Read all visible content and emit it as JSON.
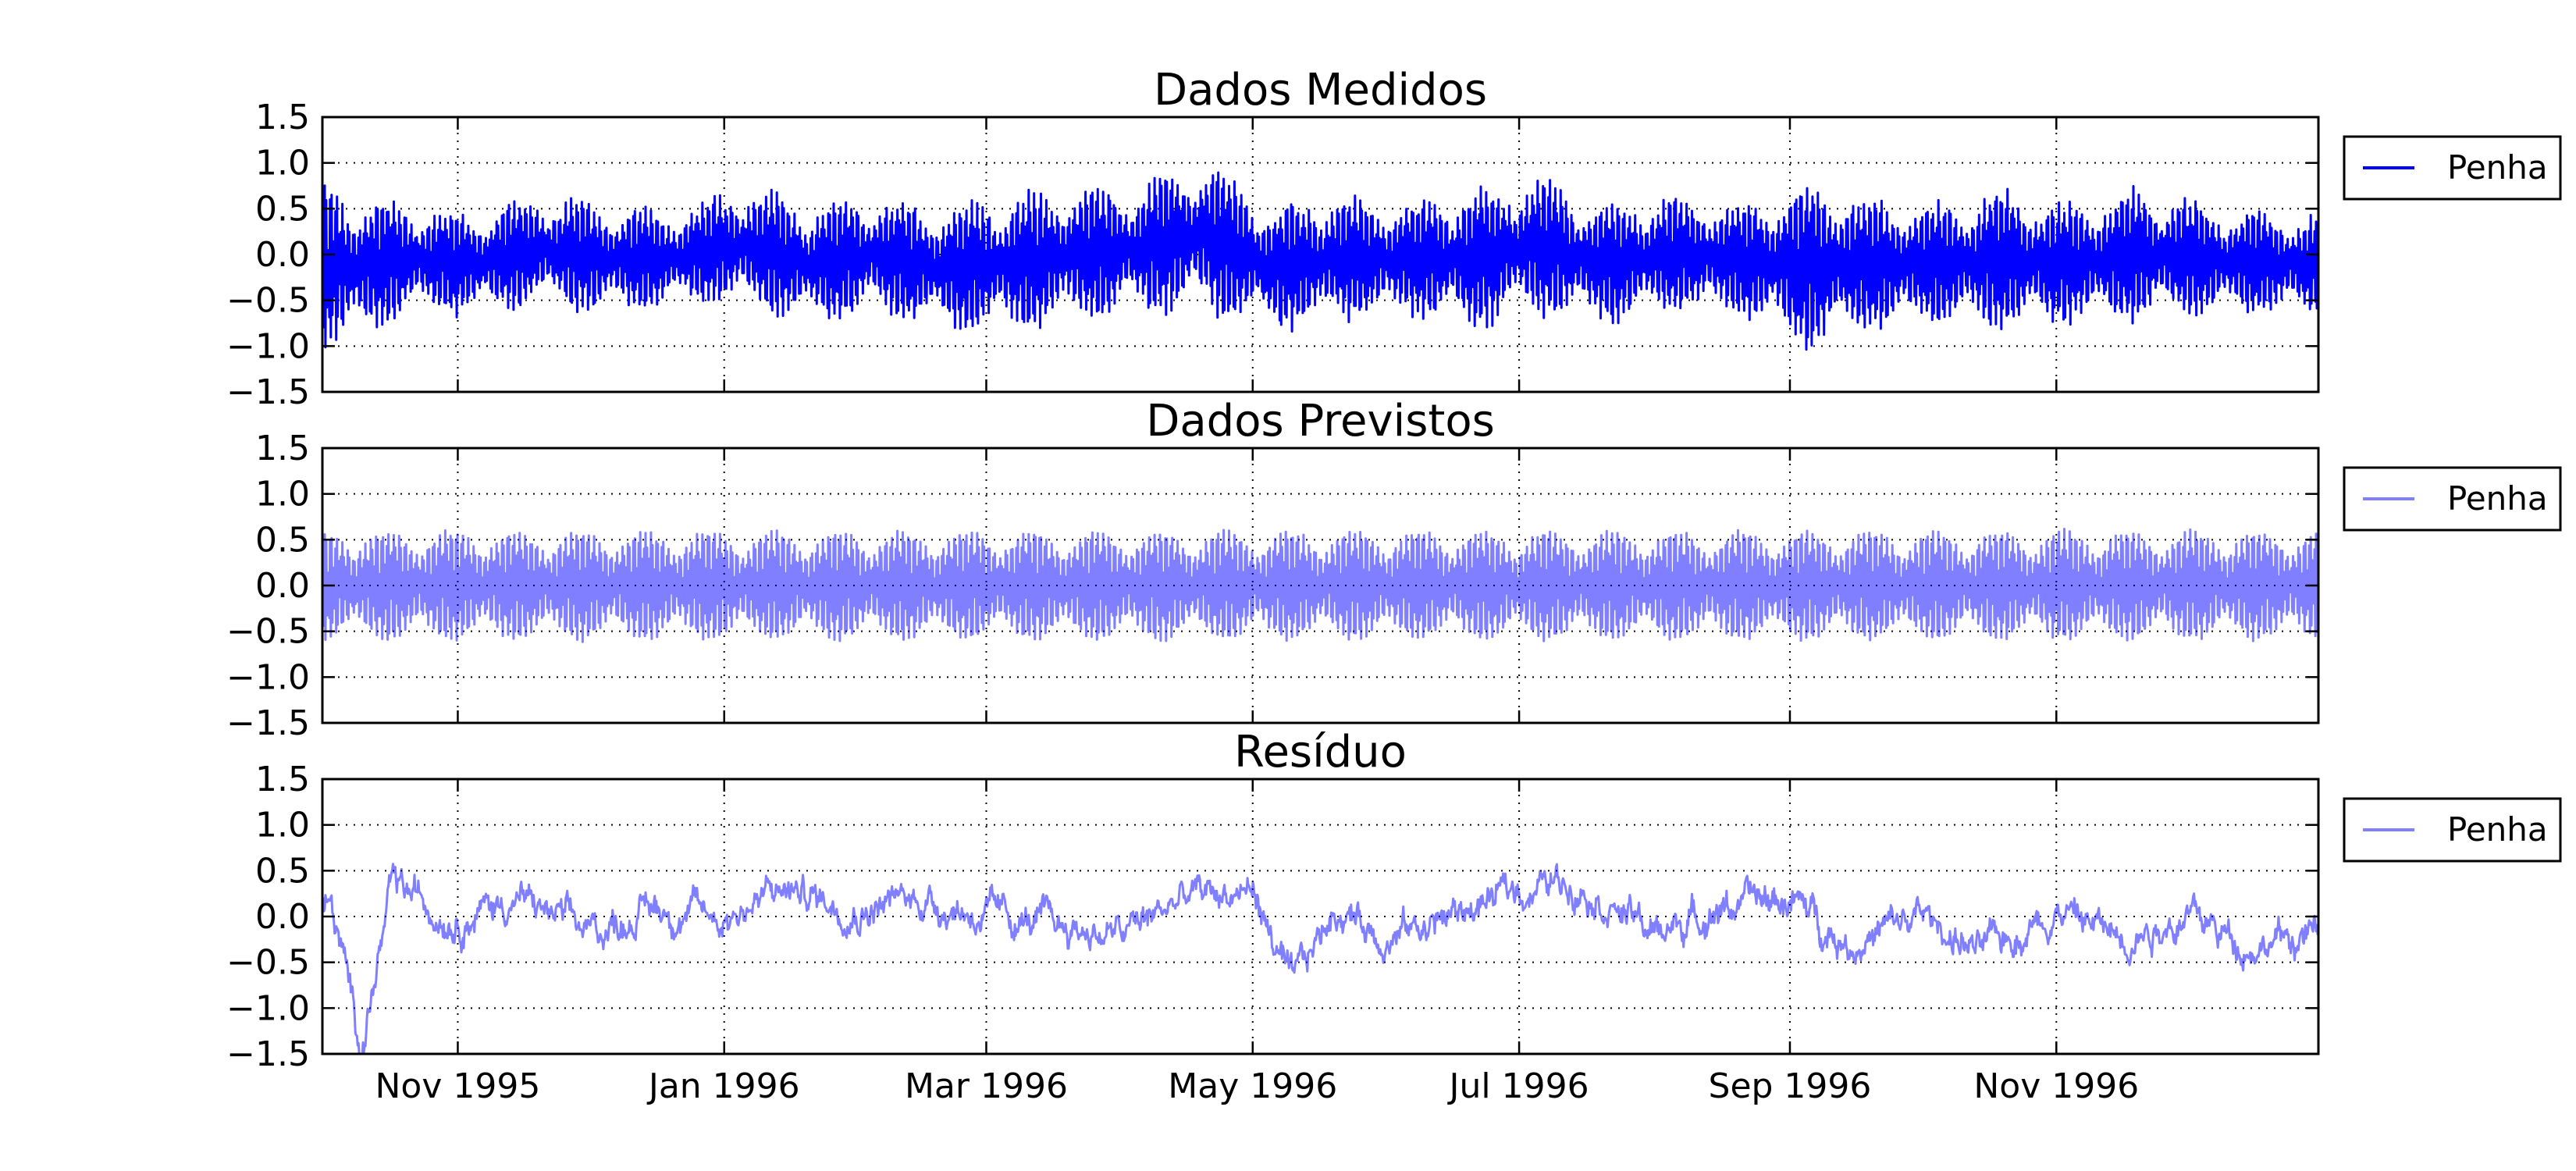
{
  "chart_data": {
    "type": "line",
    "x_axis": {
      "kind": "date",
      "range": [
        "1995-10-01",
        "1996-12-31"
      ],
      "tick_labels": [
        "Nov 1995",
        "Jan 1996",
        "Mar 1996",
        "May 1996",
        "Jul 1996",
        "Sep 1996",
        "Nov 1996"
      ],
      "tick_dates": [
        "1995-11-01",
        "1996-01-01",
        "1996-03-01",
        "1996-05-01",
        "1996-07-01",
        "1996-09-01",
        "1996-11-01"
      ]
    },
    "y_axis": {
      "range": [
        -1.5,
        1.5
      ],
      "tick_labels": [
        "1.5",
        "1.0",
        "0.5",
        "0.0",
        "−0.5",
        "−1.0",
        "−1.5"
      ],
      "tick_values": [
        1.5,
        1.0,
        0.5,
        0.0,
        -0.5,
        -1.0,
        -1.5
      ]
    },
    "grid": true,
    "legend_placement": "outside-right",
    "panels": [
      {
        "title": "Dados Medidos",
        "series": [
          {
            "name": "Penha",
            "color": "#0000ff",
            "opacity": 1.0
          }
        ],
        "signal": "measured",
        "x": [
          "1995-10-05",
          "1995-10-20",
          "1995-11-05",
          "1995-11-20",
          "1995-12-05",
          "1995-12-20",
          "1996-01-05",
          "1996-01-20",
          "1996-02-05",
          "1996-02-20",
          "1996-03-05",
          "1996-03-20",
          "1996-04-05",
          "1996-04-20",
          "1996-05-05",
          "1996-05-20",
          "1996-06-05",
          "1996-06-20",
          "1996-07-05",
          "1996-07-20",
          "1996-08-05",
          "1996-08-20",
          "1996-09-05",
          "1996-09-20",
          "1996-10-05",
          "1996-10-20",
          "1996-11-05",
          "1996-11-20",
          "1996-12-05",
          "1996-12-20"
        ],
        "upper": [
          0.8,
          0.6,
          0.5,
          0.7,
          0.6,
          0.5,
          0.8,
          0.6,
          0.7,
          0.6,
          0.7,
          0.8,
          0.8,
          1.15,
          0.6,
          0.7,
          0.6,
          0.8,
          0.9,
          0.6,
          0.7,
          0.6,
          0.9,
          0.7,
          0.6,
          0.8,
          0.6,
          0.8,
          0.6,
          0.5
        ],
        "lower": [
          -1.1,
          -0.7,
          -0.7,
          -0.6,
          -0.7,
          -0.6,
          -0.6,
          -0.8,
          -0.7,
          -0.9,
          -0.9,
          -0.8,
          -0.7,
          -0.7,
          -0.9,
          -0.8,
          -0.7,
          -0.9,
          -0.7,
          -0.8,
          -0.7,
          -0.7,
          -1.15,
          -0.9,
          -0.8,
          -0.9,
          -0.8,
          -0.8,
          -0.7,
          -0.7
        ]
      },
      {
        "title": "Dados Previstos",
        "series": [
          {
            "name": "Penha",
            "color": "#0000ff",
            "opacity": 0.5
          }
        ],
        "signal": "predicted",
        "x": [
          "1995-10-01",
          "1996-12-31"
        ],
        "upper": [
          0.62,
          0.62
        ],
        "lower": [
          -0.62,
          -0.62
        ]
      },
      {
        "title": "Resíduo",
        "series": [
          {
            "name": "Penha",
            "color": "#0000ff",
            "opacity": 0.5
          }
        ],
        "signal": "residual",
        "x": [
          "1995-10-03",
          "1995-10-10",
          "1995-10-17",
          "1995-11-01",
          "1995-11-15",
          "1995-12-01",
          "1995-12-15",
          "1996-01-01",
          "1996-01-15",
          "1996-02-01",
          "1996-02-15",
          "1996-03-01",
          "1996-03-15",
          "1996-04-01",
          "1996-04-15",
          "1996-05-01",
          "1996-05-10",
          "1996-05-20",
          "1996-06-01",
          "1996-06-15",
          "1996-07-01",
          "1996-07-15",
          "1996-08-01",
          "1996-08-15",
          "1996-09-01",
          "1996-09-15",
          "1996-10-01",
          "1996-10-15",
          "1996-11-01",
          "1996-11-15",
          "1996-12-01",
          "1996-12-15",
          "1996-12-31"
        ],
        "values": [
          0.1,
          -1.4,
          0.3,
          0.0,
          0.2,
          -0.2,
          0.1,
          0.0,
          0.3,
          0.1,
          0.2,
          0.0,
          -0.1,
          -0.2,
          0.2,
          0.3,
          -0.8,
          0.1,
          -0.2,
          0.0,
          0.3,
          0.4,
          -0.2,
          0.1,
          0.2,
          -0.3,
          0.0,
          -0.4,
          0.1,
          -0.2,
          0.0,
          -0.3,
          -0.2
        ]
      }
    ]
  }
}
